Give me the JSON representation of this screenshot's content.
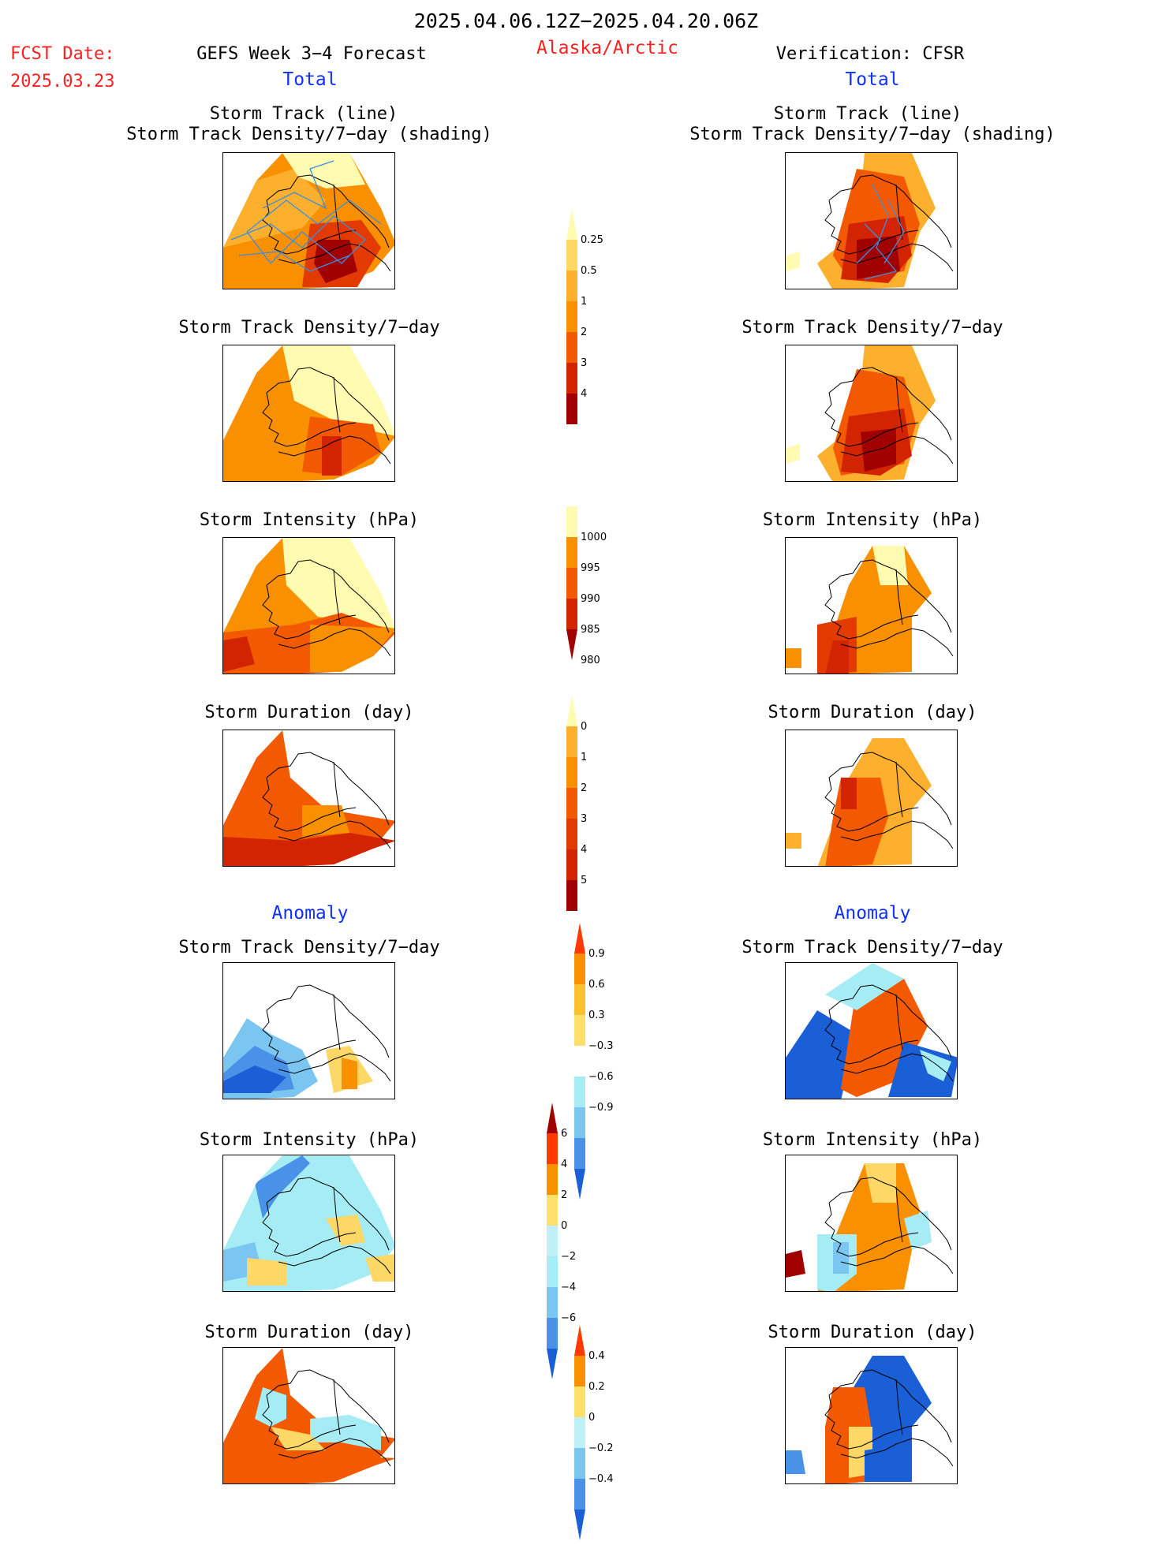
{
  "header": {
    "date_range": "2025.04.06.12Z−2025.04.20.06Z",
    "fcst_label": "FCST Date:",
    "fcst_date": "2025.03.23",
    "forecast_title": "GEFS Week 3−4 Forecast",
    "region": "Alaska/Arctic",
    "verification": "Verification: CFSR"
  },
  "sections": {
    "total_left": "Total",
    "total_right": "Total",
    "anomaly_left": "Anomaly",
    "anomaly_right": "Anomaly"
  },
  "titles": {
    "track_line": "Storm Track (line)",
    "track_shading": "Storm Track Density/7−day (shading)",
    "density": "Storm Track Density/7−day",
    "intensity": "Storm Intensity (hPa)",
    "duration": "Storm Duration (day)"
  },
  "colorbars": {
    "density": {
      "labels": [
        "0.25",
        "0.5",
        "1",
        "2",
        "3",
        "4"
      ],
      "colors": [
        "#fffbb0",
        "#fed866",
        "#fdb02e",
        "#f99000",
        "#f35a00",
        "#d22400",
        "#a00000"
      ]
    },
    "intensity": {
      "labels": [
        "1000",
        "995",
        "990",
        "985",
        "980"
      ],
      "colors": [
        "#fffbb0",
        "#f99000",
        "#f35a00",
        "#d22400",
        "#a00000"
      ]
    },
    "duration": {
      "labels": [
        "0",
        "1",
        "2",
        "3",
        "4",
        "5"
      ],
      "colors": [
        "#fffbb0",
        "#fdb02e",
        "#f99000",
        "#f35a00",
        "#e23a00",
        "#d22400",
        "#a00000"
      ]
    },
    "density_anom": {
      "labels": [
        "0.9",
        "0.6",
        "0.3",
        "−0.3",
        "−0.6",
        "−0.9"
      ],
      "colors": [
        "#ff3a00",
        "#f99000",
        "#fdc030",
        "#fde06a",
        "#ffffff",
        "#a6ecf5",
        "#7ac6f0",
        "#4a92e8",
        "#1a5fd6"
      ]
    },
    "intensity_anom": {
      "labels": [
        "6",
        "4",
        "2",
        "0",
        "−2",
        "−4",
        "−6"
      ],
      "colors": [
        "#a00000",
        "#ff3a00",
        "#f99000",
        "#fde06a",
        "#bff0f8",
        "#a6ecf5",
        "#7ac6f0",
        "#4a92e8",
        "#1a5fd6"
      ]
    },
    "duration_anom": {
      "labels": [
        "0.4",
        "0.2",
        "0",
        "−0.2",
        "−0.4"
      ],
      "colors": [
        "#ff3a00",
        "#f99000",
        "#fde06a",
        "#bff0f8",
        "#7ac6f0",
        "#4a92e8",
        "#1a5fd6"
      ]
    }
  },
  "chart_data": [
    {
      "type": "heatmap",
      "title": "Storm Track (line) / Storm Track Density/7−day (shading)",
      "panel": "GEFS Total",
      "colorbar_labels": [
        "0.25",
        "0.5",
        "1",
        "2",
        "3",
        "4"
      ]
    },
    {
      "type": "heatmap",
      "title": "Storm Track (line) / Storm Track Density/7−day (shading)",
      "panel": "CFSR Total",
      "colorbar_labels": [
        "0.25",
        "0.5",
        "1",
        "2",
        "3",
        "4"
      ]
    },
    {
      "type": "heatmap",
      "title": "Storm Track Density/7−day",
      "panel": "GEFS Total"
    },
    {
      "type": "heatmap",
      "title": "Storm Track Density/7−day",
      "panel": "CFSR Total"
    },
    {
      "type": "heatmap",
      "title": "Storm Intensity (hPa)",
      "panel": "GEFS Total",
      "colorbar_labels": [
        "1000",
        "995",
        "990",
        "985",
        "980"
      ]
    },
    {
      "type": "heatmap",
      "title": "Storm Intensity (hPa)",
      "panel": "CFSR Total"
    },
    {
      "type": "heatmap",
      "title": "Storm Duration (day)",
      "panel": "GEFS Total",
      "colorbar_labels": [
        "0",
        "1",
        "2",
        "3",
        "4",
        "5"
      ]
    },
    {
      "type": "heatmap",
      "title": "Storm Duration (day)",
      "panel": "CFSR Total"
    },
    {
      "type": "heatmap",
      "title": "Storm Track Density/7−day",
      "panel": "GEFS Anomaly",
      "colorbar_labels": [
        "0.9",
        "0.6",
        "0.3",
        "−0.3",
        "−0.6",
        "−0.9"
      ]
    },
    {
      "type": "heatmap",
      "title": "Storm Track Density/7−day",
      "panel": "CFSR Anomaly"
    },
    {
      "type": "heatmap",
      "title": "Storm Intensity (hPa)",
      "panel": "GEFS Anomaly",
      "colorbar_labels": [
        "6",
        "4",
        "2",
        "0",
        "−2",
        "−4",
        "−6"
      ]
    },
    {
      "type": "heatmap",
      "title": "Storm Intensity (hPa)",
      "panel": "CFSR Anomaly"
    },
    {
      "type": "heatmap",
      "title": "Storm Duration (day)",
      "panel": "GEFS Anomaly",
      "colorbar_labels": [
        "0.4",
        "0.2",
        "0",
        "−0.2",
        "−0.4"
      ]
    },
    {
      "type": "heatmap",
      "title": "Storm Duration (day)",
      "panel": "CFSR Anomaly"
    }
  ]
}
